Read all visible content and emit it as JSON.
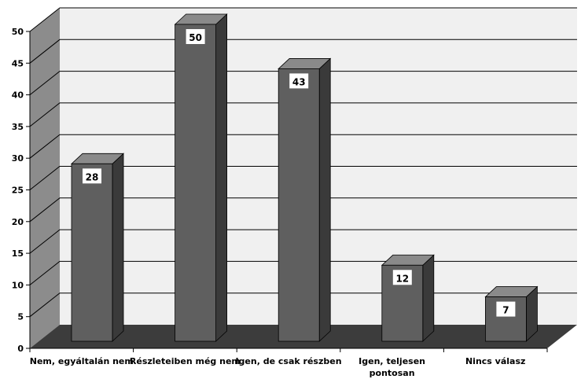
{
  "chart_data": {
    "type": "bar",
    "categories": [
      [
        "Nem, egyáltalán nem"
      ],
      [
        "Részleteiben még nem"
      ],
      [
        "Igen, de csak részben"
      ],
      [
        "Igen, teljesen",
        "pontosan"
      ],
      [
        "Nincs válasz"
      ]
    ],
    "values": [
      28,
      50,
      43,
      12,
      7
    ],
    "data_labels": [
      "28",
      "50",
      "43",
      "12",
      "7"
    ],
    "ylim": [
      0,
      50
    ],
    "yticks": [
      0,
      5,
      10,
      15,
      20,
      25,
      30,
      35,
      40,
      45,
      50
    ],
    "grid": true,
    "style": "3d-column",
    "colors": {
      "bar_front": "#5f5f5f",
      "bar_side": "#3a3a3a",
      "bar_top": "#8a8a8a",
      "back_wall": "#f0f0f0",
      "side_wall": "#8c8c8c",
      "floor": "#3c3c3c",
      "gridline": "#000000"
    }
  }
}
